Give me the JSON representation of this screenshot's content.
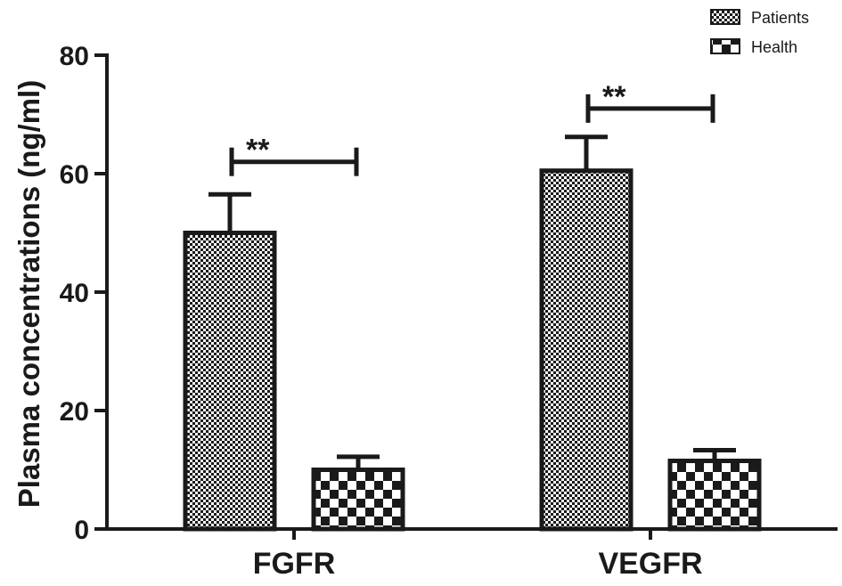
{
  "chart_data": {
    "type": "bar",
    "categories": [
      "FGFR",
      "VEGFR"
    ],
    "series": [
      {
        "name": "Patients",
        "values": [
          50,
          60.5
        ],
        "errors": [
          6.5,
          5.7
        ]
      },
      {
        "name": "Health",
        "values": [
          10,
          11.5
        ],
        "errors": [
          2.2,
          1.8
        ]
      }
    ],
    "significance": [
      {
        "category": "FGFR",
        "label": "**",
        "y": 62
      },
      {
        "category": "VEGFR",
        "label": "**",
        "y": 71
      }
    ],
    "xlabel": "",
    "ylabel": "Plasma concentrations (ng/ml)",
    "ylim": [
      0,
      80
    ],
    "yticks": [
      0,
      20,
      40,
      60,
      80
    ],
    "legend_position": "top-right",
    "grid": false,
    "patterns": {
      "Patients": "fine-checker",
      "Health": "coarse-checker"
    },
    "colors": {
      "stroke": "#1a1a1a",
      "fill_dark": "#1a1a1a",
      "fill_light": "#ffffff"
    }
  }
}
